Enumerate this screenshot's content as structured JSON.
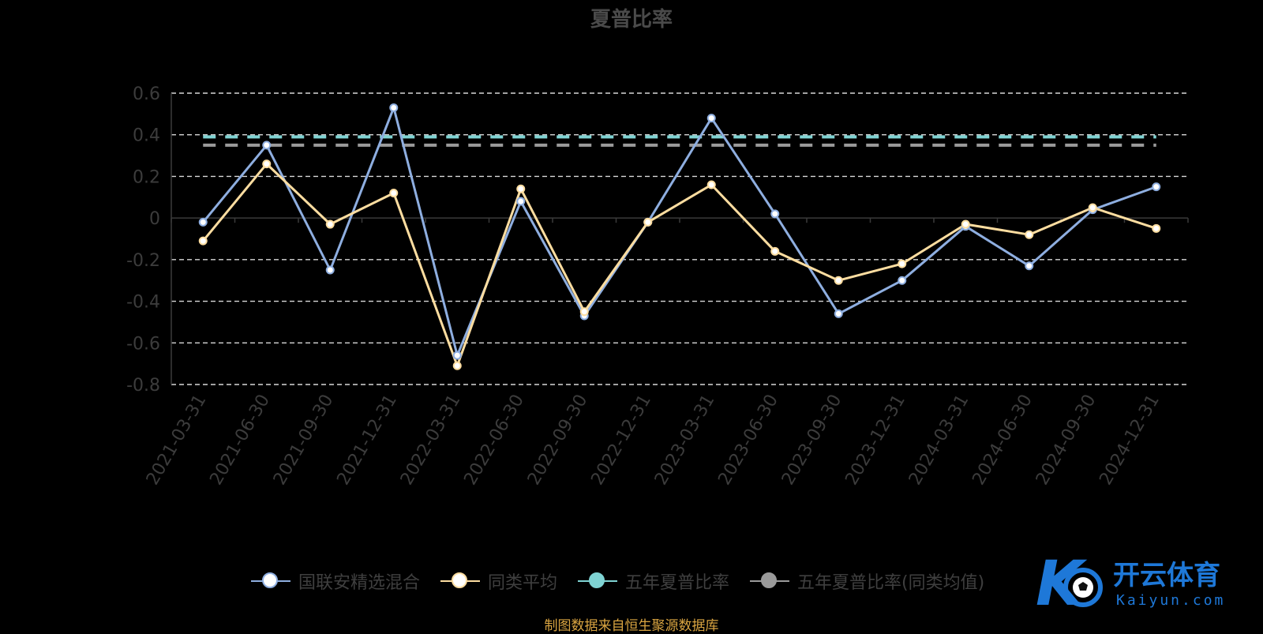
{
  "title": "夏普比率",
  "source_note": "制图数据来自恒生聚源数据库",
  "logo": {
    "name": "开云体育",
    "domain": "Kaiyun.com"
  },
  "colors": {
    "fund": "#8eaee0",
    "peer_avg": "#fddda0",
    "five_year": "#7fd3d3",
    "five_year_peer": "#9a9a9a",
    "grid": "#d8d8d8",
    "axis_text": "#3c3c3c",
    "logo_blue": "#1e78d8"
  },
  "legend": [
    {
      "label": "国联安精选混合",
      "series": "fund"
    },
    {
      "label": "同类平均",
      "series": "peer_avg"
    },
    {
      "label": "五年夏普比率",
      "series": "five_year"
    },
    {
      "label": "五年夏普比率(同类均值)",
      "series": "five_year_peer"
    }
  ],
  "chart_data": {
    "type": "line",
    "title": "夏普比率",
    "categories": [
      "2021-03-31",
      "2021-06-30",
      "2021-09-30",
      "2021-12-31",
      "2022-03-31",
      "2022-06-30",
      "2022-09-30",
      "2022-12-31",
      "2023-03-31",
      "2023-06-30",
      "2023-09-30",
      "2023-12-31",
      "2024-03-31",
      "2024-06-30",
      "2024-09-30",
      "2024-12-31"
    ],
    "ylim": [
      -0.8,
      0.6
    ],
    "yticks": [
      {
        "value": 0.6,
        "label": "0.6"
      },
      {
        "value": 0.4,
        "label": "0.4"
      },
      {
        "value": 0.2,
        "label": "0.2"
      },
      {
        "value": 0,
        "label": "0"
      },
      {
        "value": -0.2,
        "label": "-0.2"
      },
      {
        "value": -0.4,
        "label": "-0.4"
      },
      {
        "value": -0.6,
        "label": "-0.6"
      },
      {
        "value": -0.8,
        "label": "-0.8"
      }
    ],
    "grid": true,
    "legend_position": "bottom",
    "series": [
      {
        "name": "国联安精选混合",
        "key": "fund",
        "style": "line",
        "values": [
          -0.02,
          0.35,
          -0.25,
          0.53,
          -0.66,
          0.08,
          -0.47,
          -0.02,
          0.48,
          0.02,
          -0.46,
          -0.3,
          -0.04,
          -0.23,
          0.04,
          0.15
        ]
      },
      {
        "name": "同类平均",
        "key": "peer_avg",
        "style": "line",
        "values": [
          -0.11,
          0.26,
          -0.03,
          0.12,
          -0.71,
          0.14,
          -0.45,
          -0.02,
          0.16,
          -0.16,
          -0.3,
          -0.22,
          -0.03,
          -0.08,
          0.05,
          -0.05
        ]
      },
      {
        "name": "五年夏普比率",
        "key": "five_year",
        "style": "dashed",
        "value": 0.39
      },
      {
        "name": "五年夏普比率(同类均值)",
        "key": "five_year_peer",
        "style": "dashed",
        "value": 0.35
      }
    ]
  }
}
